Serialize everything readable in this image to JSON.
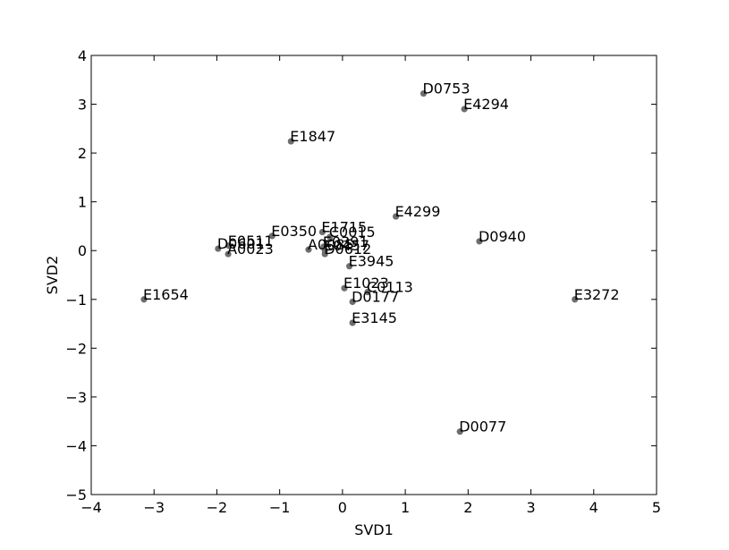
{
  "chart_data": {
    "type": "scatter",
    "title": "",
    "xlabel": "SVD1",
    "ylabel": "SVD2",
    "xlim": [
      -4,
      5
    ],
    "ylim": [
      -5,
      4
    ],
    "xticks": [
      -4,
      -3,
      -2,
      -1,
      0,
      1,
      2,
      3,
      4,
      5
    ],
    "yticks": [
      -5,
      -4,
      -3,
      -2,
      -1,
      0,
      1,
      2,
      3,
      4
    ],
    "xtick_labels": [
      "−4",
      "−3",
      "−2",
      "−1",
      "0",
      "1",
      "2",
      "3",
      "4",
      "5"
    ],
    "ytick_labels": [
      "−5",
      "−4",
      "−3",
      "−2",
      "−1",
      "0",
      "1",
      "2",
      "3",
      "4"
    ],
    "grid": false,
    "point_color": "#6e6e6e",
    "points": [
      {
        "label": "D0753",
        "x": 1.29,
        "y": 3.22
      },
      {
        "label": "E4294",
        "x": 1.94,
        "y": 2.9
      },
      {
        "label": "E1847",
        "x": -0.82,
        "y": 2.24
      },
      {
        "label": "E4299",
        "x": 0.85,
        "y": 0.7
      },
      {
        "label": "D0940",
        "x": 2.18,
        "y": 0.19
      },
      {
        "label": "E0350",
        "x": -1.12,
        "y": 0.3
      },
      {
        "label": "E1715",
        "x": -0.32,
        "y": 0.38
      },
      {
        "label": "C0015",
        "x": -0.2,
        "y": 0.28
      },
      {
        "label": "E0511",
        "x": -1.81,
        "y": 0.1
      },
      {
        "label": "D0601",
        "x": -1.98,
        "y": 0.04
      },
      {
        "label": "A0023",
        "x": -1.82,
        "y": -0.07
      },
      {
        "label": "A0085",
        "x": -0.54,
        "y": 0.02
      },
      {
        "label": "E0391",
        "x": -0.3,
        "y": 0.08
      },
      {
        "label": "E0457",
        "x": -0.28,
        "y": 0.0
      },
      {
        "label": "D0612",
        "x": -0.28,
        "y": -0.07
      },
      {
        "label": "E3945",
        "x": 0.11,
        "y": -0.32
      },
      {
        "label": "E1654",
        "x": -3.16,
        "y": -1.0
      },
      {
        "label": "E1023",
        "x": 0.03,
        "y": -0.77
      },
      {
        "label": "C0113",
        "x": 0.4,
        "y": -0.85
      },
      {
        "label": "D0177",
        "x": 0.16,
        "y": -1.05
      },
      {
        "label": "E3272",
        "x": 3.7,
        "y": -1.0
      },
      {
        "label": "E3145",
        "x": 0.16,
        "y": -1.48
      },
      {
        "label": "D0077",
        "x": 1.87,
        "y": -3.71
      }
    ]
  }
}
